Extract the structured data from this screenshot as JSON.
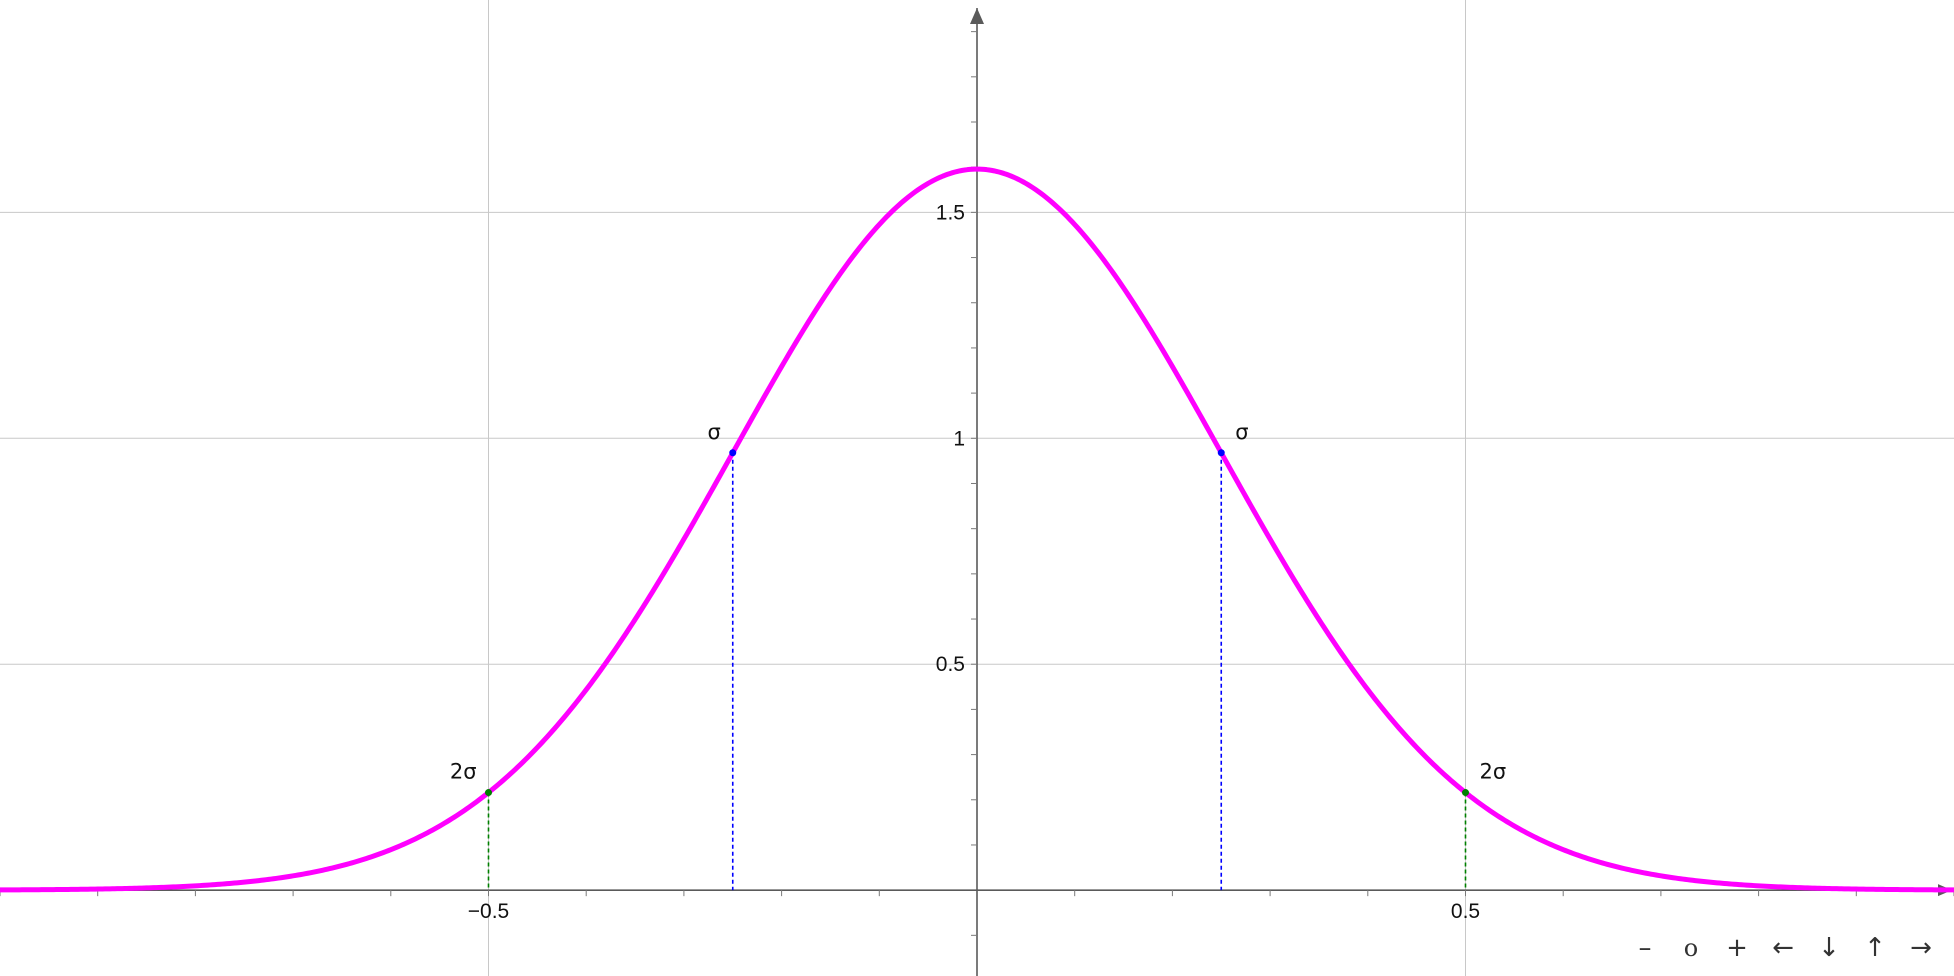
{
  "chart_data": {
    "type": "line",
    "function": "normal density, mean 0, sigma 0.25",
    "mean": 0,
    "sigma": 0.25,
    "xlim": [
      -1.0,
      1.0
    ],
    "ylim": [
      -0.19,
      1.97
    ],
    "x_ticks": [
      -0.5,
      0.5
    ],
    "x_tick_labels": [
      "−0.5",
      "0.5"
    ],
    "y_ticks": [
      0.5,
      1,
      1.5
    ],
    "y_tick_labels": [
      "0.5",
      "1",
      "1.5"
    ],
    "grid": true,
    "curve_color": "#ff00ff",
    "marked_points": [
      {
        "label": "σ",
        "x": -0.25,
        "y": 0.968,
        "color": "#0000ff"
      },
      {
        "label": "σ",
        "x": 0.25,
        "y": 0.968,
        "color": "#0000ff"
      },
      {
        "label": "2σ",
        "x": -0.5,
        "y": 0.216,
        "color": "#008000"
      },
      {
        "label": "2σ",
        "x": 0.5,
        "y": 0.216,
        "color": "#008000"
      }
    ]
  },
  "toolbar": {
    "zoom_out": "–",
    "reset": "o",
    "zoom_in": "+",
    "pan_left": "←",
    "pan_down": "↓",
    "pan_up": "↑",
    "pan_right": "→"
  }
}
